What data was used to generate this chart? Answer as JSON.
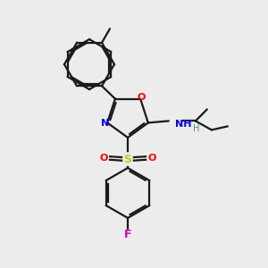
{
  "background_color": "#ececec",
  "bond_color": "#1a1a1a",
  "figsize": [
    3.0,
    3.0
  ],
  "dpi": 100,
  "lw": 1.6,
  "colors": {
    "O": "#ff0000",
    "N": "#0000ff",
    "S": "#cccc00",
    "F": "#cc00cc",
    "NH": "#0000ff",
    "H": "#4a9090",
    "bond": "#1a1a1a"
  }
}
